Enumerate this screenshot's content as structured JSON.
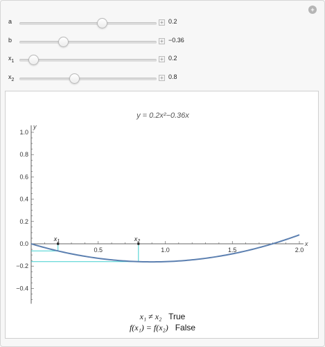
{
  "controls": [
    {
      "label": "a",
      "sub": "",
      "value": 0.2,
      "display": "0.2",
      "min": -1,
      "max": 1
    },
    {
      "label": "b",
      "sub": "",
      "value": -0.36,
      "display": "−0.36",
      "min": -1,
      "max": 1
    },
    {
      "label": "x",
      "sub": "1",
      "value": 0.2,
      "display": "0.2",
      "min": 0,
      "max": 2
    },
    {
      "label": "x",
      "sub": "2",
      "value": 0.8,
      "display": "0.8",
      "min": 0,
      "max": 2
    }
  ],
  "icons": {
    "reset": "reset-icon",
    "plus": "plus-icon"
  },
  "plot_title": "y = 0.2x²−0.36x",
  "chart_data": {
    "type": "line",
    "title": "y = 0.2x²−0.36x",
    "xlabel": "x",
    "ylabel": "y",
    "xlim": [
      0,
      2
    ],
    "ylim": [
      -0.5,
      1.0
    ],
    "x_ticks": [
      0.5,
      1.0,
      1.5,
      2.0
    ],
    "x_tick_labels": [
      "0.5",
      "1.0",
      "1.5",
      "2.0"
    ],
    "y_ticks": [
      1.0,
      0.8,
      0.6,
      0.4,
      0.2,
      0.0,
      -0.2,
      -0.4
    ],
    "y_tick_labels": [
      "1.0",
      "0.8",
      "0.6",
      "0.4",
      "0.2",
      "0.0",
      "−0.2",
      "−0.4"
    ],
    "a": 0.2,
    "b": -0.36,
    "markers": [
      {
        "name": "x1",
        "x": 0.2,
        "label": "x",
        "sub": "1"
      },
      {
        "name": "x2",
        "x": 0.8,
        "label": "x",
        "sub": "2"
      }
    ],
    "curve_color": "#5b7fb0",
    "guide_color": "#3fcfcf"
  },
  "results": {
    "line1": {
      "lhs": "x₁ ≠ x₂",
      "value": "True"
    },
    "line2": {
      "lhs": "f(x₁) = f(x₂)",
      "value": "False"
    }
  }
}
